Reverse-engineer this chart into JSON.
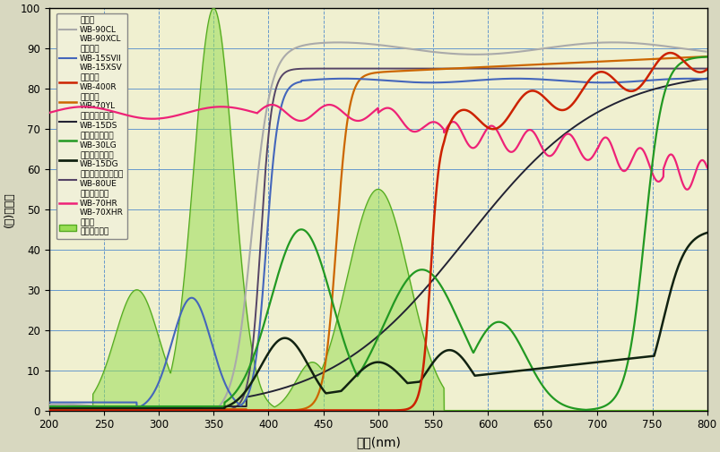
{
  "xlabel": "波長(nm)",
  "ylabel": "(％)透過率",
  "xlim": [
    200,
    800
  ],
  "ylim": [
    0,
    100
  ],
  "bg_color": "#f0f0d0",
  "colors": {
    "clear": "#aaaaaa",
    "silver": "#4466bb",
    "orange_film": "#cc2200",
    "yellow": "#cc6600",
    "dark_smoke": "#222233",
    "light_green": "#229922",
    "dark_green": "#112211",
    "convex": "#554466",
    "heat_ref": "#ee2277",
    "insect_fill": "#99dd55",
    "insect_line": "#55aa22"
  },
  "grid_color": "#6699cc",
  "vgrid_color": "#6699cc"
}
